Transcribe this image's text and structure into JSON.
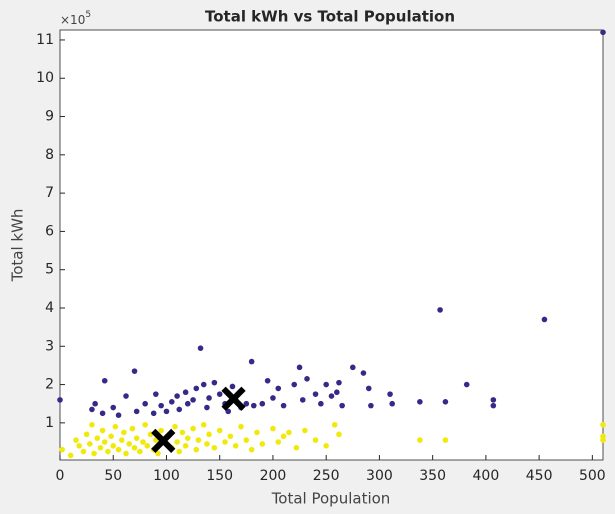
{
  "chart_data": {
    "type": "scatter",
    "title": "Total kWh vs Total Population",
    "x_label": "Total Population",
    "y_label": "Total kWh",
    "y_multiplier": "×10",
    "y_multiplier_exponent": "5",
    "xlim": [
      0,
      510
    ],
    "ylim": [
      3000,
      1126000
    ],
    "xticks": [
      0,
      50,
      100,
      150,
      200,
      250,
      300,
      350,
      400,
      450,
      500
    ],
    "yticks": [
      {
        "value": 100000,
        "label": "1"
      },
      {
        "value": 200000,
        "label": "2"
      },
      {
        "value": 300000,
        "label": "3"
      },
      {
        "value": 400000,
        "label": "4"
      },
      {
        "value": 500000,
        "label": "5"
      },
      {
        "value": 600000,
        "label": "6"
      },
      {
        "value": 700000,
        "label": "7"
      },
      {
        "value": 800000,
        "label": "8"
      },
      {
        "value": 900000,
        "label": "9"
      },
      {
        "value": 1000000,
        "label": "10"
      },
      {
        "value": 1100000,
        "label": "11"
      }
    ],
    "grid": false,
    "series": [
      {
        "color": "#352a87",
        "x": [
          0,
          30,
          33,
          40,
          42,
          50,
          55,
          62,
          70,
          72,
          80,
          88,
          90,
          95,
          100,
          105,
          110,
          112,
          118,
          120,
          125,
          128,
          132,
          135,
          138,
          140,
          145,
          150,
          155,
          158,
          162,
          165,
          170,
          175,
          180,
          182,
          190,
          195,
          200,
          205,
          210,
          220,
          225,
          228,
          232,
          240,
          245,
          250,
          255,
          260,
          262,
          265,
          275,
          285,
          290,
          292,
          310,
          312,
          338,
          357,
          362,
          382,
          407,
          407,
          455,
          510
        ],
        "values": [
          160000,
          135000,
          150000,
          125000,
          210000,
          140000,
          120000,
          170000,
          235000,
          130000,
          150000,
          125000,
          175000,
          145000,
          130000,
          155000,
          170000,
          135000,
          180000,
          150000,
          160000,
          190000,
          295000,
          200000,
          140000,
          165000,
          205000,
          175000,
          150000,
          130000,
          195000,
          160000,
          140000,
          150000,
          260000,
          145000,
          150000,
          210000,
          165000,
          190000,
          145000,
          200000,
          245000,
          160000,
          215000,
          175000,
          150000,
          200000,
          170000,
          180000,
          205000,
          145000,
          245000,
          230000,
          190000,
          145000,
          175000,
          150000,
          155000,
          395000,
          155000,
          200000,
          160000,
          145000,
          370000,
          1120000
        ]
      },
      {
        "color": "#f2e90c",
        "x": [
          2,
          10,
          15,
          18,
          22,
          25,
          28,
          30,
          32,
          35,
          38,
          40,
          42,
          45,
          48,
          50,
          52,
          55,
          58,
          60,
          62,
          65,
          68,
          70,
          72,
          75,
          78,
          80,
          82,
          85,
          88,
          90,
          92,
          95,
          100,
          102,
          105,
          108,
          110,
          112,
          115,
          118,
          120,
          125,
          128,
          130,
          135,
          138,
          140,
          145,
          150,
          155,
          160,
          165,
          170,
          175,
          180,
          185,
          190,
          200,
          205,
          210,
          215,
          222,
          230,
          240,
          250,
          258,
          262,
          338,
          362,
          510,
          510,
          510
        ],
        "values": [
          30000,
          15000,
          55000,
          40000,
          25000,
          70000,
          45000,
          95000,
          20000,
          60000,
          35000,
          80000,
          50000,
          25000,
          65000,
          40000,
          90000,
          30000,
          55000,
          75000,
          20000,
          45000,
          85000,
          35000,
          60000,
          25000,
          50000,
          95000,
          40000,
          70000,
          30000,
          55000,
          20000,
          80000,
          45000,
          65000,
          35000,
          90000,
          50000,
          25000,
          75000,
          40000,
          60000,
          85000,
          30000,
          55000,
          95000,
          45000,
          70000,
          35000,
          80000,
          50000,
          65000,
          40000,
          90000,
          55000,
          30000,
          75000,
          45000,
          85000,
          50000,
          65000,
          75000,
          35000,
          80000,
          55000,
          40000,
          95000,
          70000,
          55000,
          55000,
          55000,
          65000,
          95000
        ]
      }
    ],
    "centroids": {
      "color": "#000000",
      "x": [
        97,
        163
      ],
      "values": [
        53000,
        163000
      ]
    }
  }
}
